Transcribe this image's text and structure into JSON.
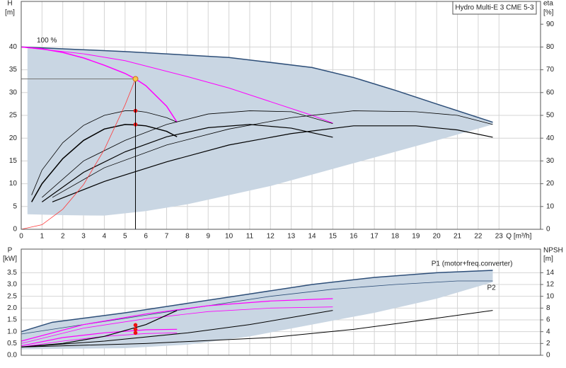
{
  "title": "Hydro Multi-E 3 CME 5-3",
  "chart_data": [
    {
      "type": "pump-curve",
      "y_label": "H",
      "y_unit": "[m]",
      "y2_label": "eta",
      "y2_unit": "[%]",
      "x_label": "Q [m³/h]",
      "xlim": [
        0,
        25
      ],
      "xticks": [
        0,
        1,
        2,
        3,
        4,
        5,
        6,
        7,
        8,
        9,
        10,
        11,
        12,
        13,
        14,
        15,
        16,
        17,
        18,
        19,
        20,
        21,
        22,
        23
      ],
      "ylim": [
        0,
        50
      ],
      "yticks": [
        0,
        5,
        10,
        15,
        20,
        25,
        30,
        35,
        40
      ],
      "y2lim": [
        0,
        100
      ],
      "y2ticks": [
        0,
        10,
        20,
        30,
        40,
        50,
        60,
        70,
        80,
        90
      ],
      "grid": true,
      "series": [
        {
          "kind": "area",
          "color": "#c9d6e3",
          "x": [
            0.3,
            2,
            4,
            6,
            8,
            10,
            12,
            14,
            16,
            18,
            20,
            22.7
          ],
          "values": [
            40,
            39.7,
            39.3,
            38.8,
            38.3,
            37.6,
            36.8,
            35.6,
            33.4,
            30.6,
            27.6,
            23.5
          ],
          "lower": [
            3.3,
            3.1,
            3.0,
            4.0,
            5.5,
            7.5,
            9.5,
            12,
            14.5,
            17,
            19.5,
            23
          ]
        },
        {
          "kind": "line",
          "color": "#2d4e78",
          "width": 1.5,
          "x": [
            0,
            5,
            10,
            14,
            16,
            18,
            20,
            22.7
          ],
          "values": [
            40,
            39,
            37.7,
            35.5,
            33.3,
            30.5,
            27.5,
            23.5
          ]
        },
        {
          "kind": "line",
          "color": "#ff00ff",
          "width": 1.5,
          "label": "100 %",
          "label_at": "start",
          "x": [
            0,
            1,
            2,
            3,
            4,
            5,
            5.5,
            6,
            7,
            7.5
          ],
          "values": [
            40,
            39.6,
            38.8,
            37.6,
            36,
            34.2,
            33,
            31.5,
            27,
            23.5
          ]
        },
        {
          "kind": "line",
          "color": "#ff00ff",
          "width": 1,
          "x": [
            0,
            3,
            5,
            8,
            10,
            12,
            14,
            15
          ],
          "values": [
            40,
            38.5,
            37,
            33.5,
            31,
            28,
            25,
            23.3
          ]
        },
        {
          "kind": "line",
          "color": "#000000",
          "width": 0.8,
          "x": [
            0.5,
            1,
            2,
            3,
            4,
            5,
            5.5,
            6,
            7,
            7.5
          ],
          "values": [
            7.5,
            13,
            19,
            22.8,
            25,
            26,
            26,
            25.7,
            24.5,
            23.5
          ]
        },
        {
          "kind": "line",
          "color": "#000000",
          "width": 1.5,
          "x": [
            0.5,
            1,
            2,
            3,
            4,
            5,
            5.5,
            6,
            7,
            7.5
          ],
          "values": [
            6,
            10,
            15.5,
            19.5,
            22,
            23,
            22.9,
            22.7,
            21.5,
            20.3
          ]
        },
        {
          "kind": "line",
          "color": "#000000",
          "width": 0.8,
          "x": [
            1,
            3,
            5,
            7,
            9,
            11,
            13,
            15
          ],
          "values": [
            7,
            15,
            19.5,
            23,
            25.3,
            26,
            25.8,
            23.2
          ]
        },
        {
          "kind": "line",
          "color": "#000000",
          "width": 1.2,
          "x": [
            1,
            3,
            5,
            7,
            9,
            11,
            13,
            15
          ],
          "values": [
            6,
            12.5,
            17,
            20.3,
            22.3,
            23,
            22.2,
            20.2
          ]
        },
        {
          "kind": "line",
          "color": "#000000",
          "width": 0.8,
          "x": [
            1.5,
            4,
            7,
            10,
            13,
            16,
            19,
            21,
            22.7
          ],
          "values": [
            7,
            13.5,
            18.5,
            22,
            24.5,
            26,
            25.8,
            25,
            23
          ]
        },
        {
          "kind": "line",
          "color": "#000000",
          "width": 1.2,
          "x": [
            1.5,
            4,
            7,
            10,
            13,
            16,
            19,
            21,
            22.7
          ],
          "values": [
            6,
            10.5,
            14.8,
            18.5,
            21,
            22.7,
            22.7,
            21.8,
            20.2
          ]
        },
        {
          "kind": "line",
          "color": "#ff3b3b",
          "width": 0.8,
          "x": [
            0,
            1,
            2,
            3,
            4,
            5,
            5.5
          ],
          "values": [
            0,
            1,
            4.4,
            9.8,
            17.5,
            27.3,
            33
          ]
        },
        {
          "kind": "points",
          "color": "#ee1111",
          "x": [
            5.5,
            5.5
          ],
          "values": [
            26,
            23
          ]
        },
        {
          "kind": "duty",
          "color": "#f7c948",
          "x": [
            5.5
          ],
          "values": [
            33
          ]
        }
      ]
    },
    {
      "type": "pump-curve",
      "y_label": "P",
      "y_unit": "[kW]",
      "y2_label": "NPSH",
      "y2_unit": "[m]",
      "xlim": [
        0,
        25
      ],
      "xticks": [
        0,
        1,
        2,
        3,
        4,
        5,
        6,
        7,
        8,
        9,
        10,
        11,
        12,
        13,
        14,
        15,
        16,
        17,
        18,
        19,
        20,
        21,
        22,
        23
      ],
      "ylim": [
        0,
        4.5
      ],
      "yticks": [
        {
          "value": 0,
          "label": "0.0"
        },
        0.5,
        {
          "value": 1,
          "label": "1.0"
        },
        1.5,
        {
          "value": 2,
          "label": "2.0"
        },
        2.5,
        {
          "value": 3,
          "label": "3.0"
        },
        3.5
      ],
      "y2lim": [
        0,
        18
      ],
      "y2ticks": [
        0,
        2,
        4,
        6,
        8,
        10,
        12,
        14
      ],
      "grid": true,
      "series": [
        {
          "kind": "area",
          "color": "#c9d6e3",
          "x": [
            0,
            1.5,
            5,
            8,
            11,
            14,
            17,
            20,
            22.7
          ],
          "values": [
            1.0,
            1.4,
            1.8,
            2.2,
            2.6,
            3.0,
            3.3,
            3.5,
            3.6
          ],
          "lower": [
            0.25,
            0.27,
            0.3,
            0.45,
            0.8,
            1.3,
            1.8,
            2.4,
            3.1
          ]
        },
        {
          "kind": "line",
          "color": "#2d4e78",
          "width": 1.5,
          "label": "P1 (motor+freq.converter)",
          "label_at": "end",
          "x": [
            0,
            1.5,
            5,
            8,
            11,
            14,
            17,
            20,
            22.7
          ],
          "values": [
            1.0,
            1.4,
            1.8,
            2.2,
            2.6,
            3.0,
            3.3,
            3.5,
            3.6
          ]
        },
        {
          "kind": "line",
          "color": "#2d4e78",
          "width": 0.8,
          "label": "P2",
          "label_at": "below",
          "x": [
            0,
            3,
            6,
            9,
            12,
            15,
            18,
            21,
            22.7
          ],
          "values": [
            0.9,
            1.3,
            1.7,
            2.1,
            2.5,
            2.8,
            3.0,
            3.15,
            3.15
          ]
        },
        {
          "kind": "line",
          "color": "#ff00ff",
          "width": 1.2,
          "x": [
            0,
            3,
            6,
            9,
            12,
            15
          ],
          "values": [
            0.6,
            1.3,
            1.75,
            2.1,
            2.3,
            2.4
          ]
        },
        {
          "kind": "line",
          "color": "#ff00ff",
          "width": 0.8,
          "x": [
            0,
            3,
            6,
            9,
            12,
            15
          ],
          "values": [
            0.5,
            1.15,
            1.55,
            1.85,
            2.0,
            2.05
          ]
        },
        {
          "kind": "line",
          "color": "#ff00ff",
          "width": 1.2,
          "x": [
            0,
            2,
            4,
            6,
            7.5
          ],
          "values": [
            0.4,
            0.75,
            0.95,
            1.08,
            1.1
          ]
        },
        {
          "kind": "line",
          "color": "#ff00ff",
          "width": 0.8,
          "x": [
            0,
            2,
            4,
            6,
            7.5
          ],
          "values": [
            0.35,
            0.6,
            0.8,
            0.92,
            0.95
          ]
        },
        {
          "kind": "line",
          "color": "#000000",
          "width": 1.2,
          "x": [
            0,
            2,
            4,
            6,
            7.5
          ],
          "values": [
            0.35,
            0.5,
            0.8,
            1.3,
            1.9
          ]
        },
        {
          "kind": "line",
          "color": "#000000",
          "width": 1,
          "x": [
            0,
            4,
            8,
            11,
            13,
            15
          ],
          "values": [
            0.35,
            0.6,
            0.95,
            1.3,
            1.6,
            1.9
          ]
        },
        {
          "kind": "line",
          "color": "#000000",
          "width": 1,
          "x": [
            0,
            6,
            12,
            16,
            19,
            22.7
          ],
          "values": [
            0.35,
            0.5,
            0.75,
            1.1,
            1.45,
            1.9
          ]
        },
        {
          "kind": "points",
          "color": "#ee1111",
          "x": [
            5.5,
            5.5,
            5.5
          ],
          "values": [
            1.28,
            1.1,
            0.95
          ]
        }
      ]
    }
  ]
}
